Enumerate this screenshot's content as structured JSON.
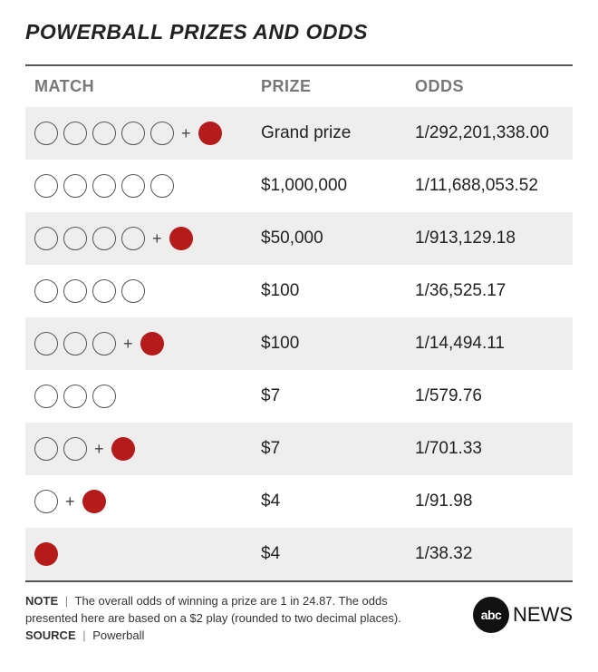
{
  "title": "POWERBALL PRIZES AND ODDS",
  "columns": {
    "match": "MATCH",
    "prize": "PRIZE",
    "odds": "ODDS"
  },
  "colors": {
    "white_ball_border": "#555555",
    "red_ball_fill": "#b51b1b",
    "shade_bg": "#eeeeee",
    "header_text": "#777777",
    "body_text": "#222222"
  },
  "rows": [
    {
      "white_balls": 5,
      "powerball": true,
      "prize": "Grand prize",
      "odds": "1/292,201,338.00",
      "shade": true
    },
    {
      "white_balls": 5,
      "powerball": false,
      "prize": "$1,000,000",
      "odds": "1/11,688,053.52",
      "shade": false
    },
    {
      "white_balls": 4,
      "powerball": true,
      "prize": "$50,000",
      "odds": "1/913,129.18",
      "shade": true
    },
    {
      "white_balls": 4,
      "powerball": false,
      "prize": "$100",
      "odds": "1/36,525.17",
      "shade": false
    },
    {
      "white_balls": 3,
      "powerball": true,
      "prize": "$100",
      "odds": "1/14,494.11",
      "shade": true
    },
    {
      "white_balls": 3,
      "powerball": false,
      "prize": "$7",
      "odds": "1/579.76",
      "shade": false
    },
    {
      "white_balls": 2,
      "powerball": true,
      "prize": "$7",
      "odds": "1/701.33",
      "shade": true
    },
    {
      "white_balls": 1,
      "powerball": true,
      "prize": "$4",
      "odds": "1/91.98",
      "shade": false
    },
    {
      "white_balls": 0,
      "powerball": true,
      "prize": "$4",
      "odds": "1/38.32",
      "shade": true
    }
  ],
  "plus_symbol": "+",
  "footer": {
    "note_label": "NOTE",
    "note_text": "The overall odds of winning a prize are 1 in 24.87. The odds presented here are based on a $2 play (rounded to two decimal places).",
    "source_label": "SOURCE",
    "source_text": "Powerball",
    "separator": "|"
  },
  "logo": {
    "circle": "abc",
    "text": "NEWS"
  }
}
